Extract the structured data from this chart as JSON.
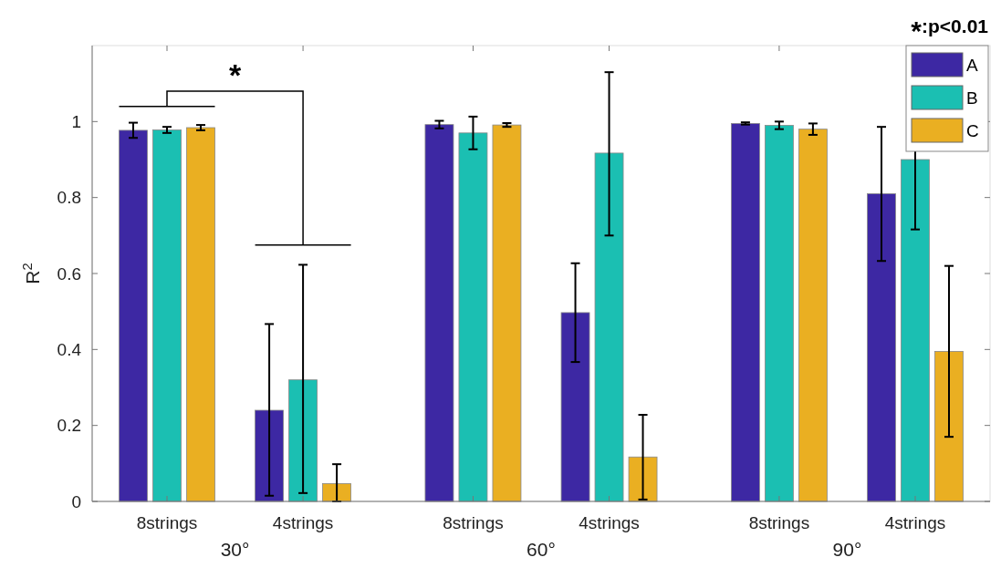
{
  "chart_data": {
    "type": "bar",
    "ylabel": "R$^{2}$",
    "categories": [
      "8strings",
      "4strings",
      "8strings",
      "4strings",
      "8strings",
      "4strings"
    ],
    "series": [
      {
        "name": "A",
        "color": "#3d28a3",
        "values": [
          0.977,
          0.24,
          0.992,
          0.497,
          0.995,
          0.81
        ],
        "errors": [
          0.02,
          [
            0.015,
            0.467
          ],
          0.01,
          [
            0.367,
            0.627
          ],
          0.003,
          [
            0.633,
            0.986
          ]
        ]
      },
      {
        "name": "B",
        "color": "#1bbfb2",
        "values": [
          0.978,
          0.32,
          0.97,
          0.917,
          0.99,
          0.9
        ],
        "errors": [
          0.008,
          [
            0.022,
            0.623
          ],
          [
            0.927,
            1.013
          ],
          [
            0.7,
            1.13
          ],
          0.01,
          [
            0.716,
            1.086
          ]
        ]
      },
      {
        "name": "C",
        "color": "#eaaf22",
        "values": [
          0.984,
          0.047,
          0.991,
          0.117,
          0.98,
          0.395
        ],
        "errors": [
          0.007,
          [
            0,
            0.098
          ],
          0.005,
          [
            0.005,
            0.228
          ],
          0.015,
          [
            0.17,
            0.62
          ]
        ]
      }
    ],
    "ylim": [
      0,
      1.2
    ],
    "yticks": [
      0,
      0.2,
      0.4,
      0.6,
      0.8,
      1
    ],
    "grid": false,
    "legend": "top right",
    "annotations": [
      "30°",
      "60°",
      "90°",
      "*",
      ":p<0.01"
    ]
  }
}
